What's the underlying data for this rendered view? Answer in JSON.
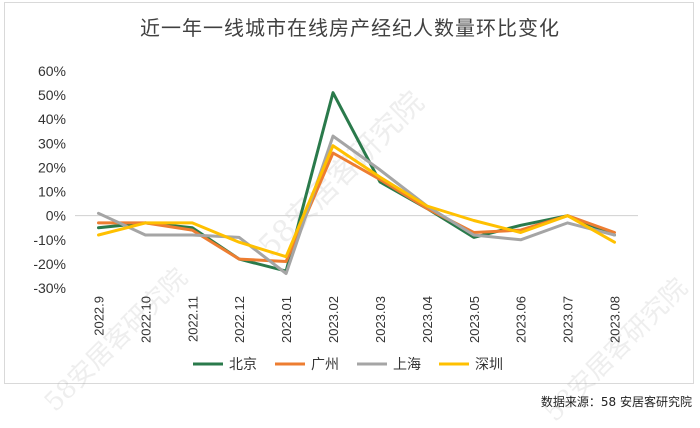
{
  "chart_data": {
    "type": "line",
    "title": "近一年一线城市在线房产经纪人数量环比变化",
    "x": [
      "2022.9",
      "2022.10",
      "2022.11",
      "2022.12",
      "2023.01",
      "2023.02",
      "2023.03",
      "2023.04",
      "2023.05",
      "2023.06",
      "2023.07",
      "2023.08"
    ],
    "ylim": [
      -30,
      60
    ],
    "yticks": [
      "60%",
      "50%",
      "40%",
      "30%",
      "20%",
      "10%",
      "0%",
      "-10%",
      "-20%",
      "-30%"
    ],
    "series": [
      {
        "name": "北京",
        "color": "#2a7a4b",
        "values": [
          -5,
          -3,
          -5,
          -18,
          -23,
          51,
          14,
          3,
          -9,
          -4,
          0,
          -8
        ]
      },
      {
        "name": "广州",
        "color": "#ed7d31",
        "values": [
          -3,
          -3,
          -6,
          -18,
          -19,
          26,
          15,
          3,
          -7,
          -6,
          0,
          -7
        ]
      },
      {
        "name": "上海",
        "color": "#a5a5a5",
        "values": [
          1,
          -8,
          -8,
          -9,
          -24,
          33,
          19,
          4,
          -8,
          -10,
          -3,
          -8
        ]
      },
      {
        "name": "深圳",
        "color": "#ffc000",
        "values": [
          -8,
          -3,
          -3,
          -11,
          -17,
          29,
          16,
          4,
          -2,
          -7,
          0,
          -11
        ]
      }
    ]
  },
  "source_label": "数据来源：58 安居客研究院",
  "watermark_text": "58安居客研究院"
}
